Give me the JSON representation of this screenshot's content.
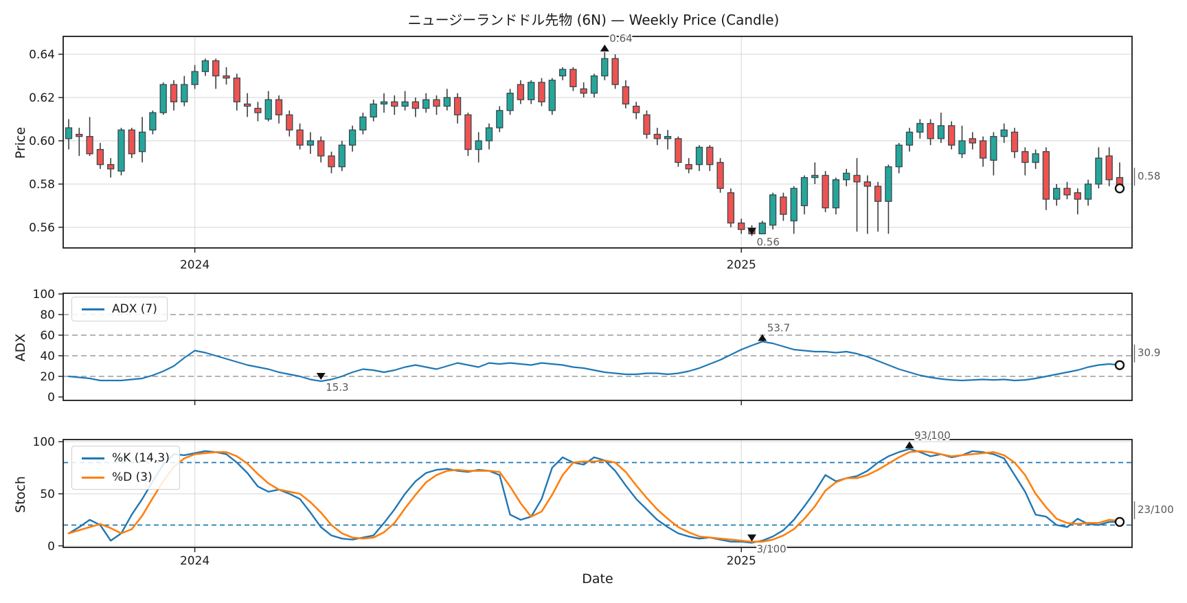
{
  "figure": {
    "title": "ニュージーランドドル先物 (6N) — Weekly Price (Candle)",
    "xlabel": "Date",
    "background": "#ffffff"
  },
  "colors": {
    "up": "#26a69a",
    "down": "#ef5350",
    "wick": "#3c3c3c",
    "edge": "#37474f",
    "adx_line": "#1f77b4",
    "k_line": "#1f77b4",
    "d_line": "#ff7f0e",
    "grid": "#dcdcdc",
    "dashed_grid": "#9a9a9a",
    "band": "#1f77b4",
    "frame": "#1a1a1a",
    "annotation_text": "#595959",
    "marker": "#111111",
    "tick_text": "#1a1a1a"
  },
  "x_axis": {
    "label": "Date",
    "n_weeks": 101,
    "year_ticks": [
      {
        "label": "2024",
        "week": 12
      },
      {
        "label": "2025",
        "week": 64
      }
    ]
  },
  "panels": {
    "price": {
      "ylabel": "Price",
      "yticks": [
        0.56,
        0.58,
        0.6,
        0.62,
        0.64
      ],
      "ytick_labels": [
        "0.56",
        "0.58",
        "0.60",
        "0.62",
        "0.64"
      ]
    },
    "adx": {
      "ylabel": "ADX",
      "yticks": [
        0,
        20,
        40,
        60,
        80,
        100
      ],
      "dashed_gridlines": [
        20,
        40,
        60,
        80
      ],
      "legend": [
        "ADX (7)"
      ]
    },
    "stoch": {
      "ylabel": "Stoch",
      "yticks": [
        0,
        50,
        100
      ],
      "bands": [
        20,
        80
      ],
      "legend": [
        "%K (14,3)",
        "%D (3)"
      ]
    }
  },
  "chart_data": [
    {
      "type": "candlestick",
      "title": "ニュージーランドドル先物 (6N) — Weekly Price (Candle)",
      "ylabel": "Price",
      "x_unit": "week",
      "xtick_labels": [
        "2024",
        "2025"
      ],
      "ylim": [
        0.5505,
        0.6485
      ],
      "scale": 0.001,
      "ohlc_format": [
        "open",
        "high",
        "low",
        "close"
      ],
      "ohlc": [
        [
          601,
          610,
          596,
          606
        ],
        [
          603,
          606,
          593,
          602
        ],
        [
          602,
          611,
          593,
          594
        ],
        [
          596,
          599,
          587,
          589
        ],
        [
          589,
          592,
          583,
          587
        ],
        [
          586,
          606,
          584,
          605
        ],
        [
          605,
          606,
          592,
          594
        ],
        [
          595,
          611,
          590,
          604
        ],
        [
          605,
          614,
          603,
          613
        ],
        [
          613,
          627,
          612,
          626
        ],
        [
          626,
          628,
          614,
          618
        ],
        [
          618,
          630,
          616,
          626
        ],
        [
          626,
          635,
          624,
          632
        ],
        [
          632,
          638,
          630,
          637
        ],
        [
          637,
          638,
          624,
          630
        ],
        [
          630,
          634,
          626,
          629
        ],
        [
          629,
          631,
          614,
          618
        ],
        [
          617,
          622,
          611,
          616
        ],
        [
          615,
          618,
          609,
          613
        ],
        [
          610,
          623,
          609,
          619
        ],
        [
          619,
          621,
          608,
          612
        ],
        [
          612,
          614,
          602,
          605
        ],
        [
          605,
          608,
          596,
          598
        ],
        [
          598,
          604,
          594,
          600
        ],
        [
          600,
          602,
          590,
          593
        ],
        [
          593,
          595,
          585,
          588
        ],
        [
          588,
          600,
          586,
          598
        ],
        [
          598,
          607,
          595,
          605
        ],
        [
          605,
          613,
          603,
          611
        ],
        [
          611,
          619,
          609,
          617
        ],
        [
          617,
          622,
          613,
          618
        ],
        [
          618,
          621,
          612,
          616
        ],
        [
          616,
          623,
          614,
          618
        ],
        [
          618,
          620,
          611,
          615
        ],
        [
          615,
          622,
          613,
          619
        ],
        [
          619,
          621,
          612,
          616
        ],
        [
          616,
          624,
          614,
          620
        ],
        [
          620,
          622,
          608,
          612
        ],
        [
          612,
          613,
          593,
          596
        ],
        [
          596,
          604,
          590,
          600
        ],
        [
          600,
          608,
          596,
          606
        ],
        [
          606,
          616,
          604,
          614
        ],
        [
          614,
          624,
          612,
          622
        ],
        [
          626,
          628,
          617,
          619
        ],
        [
          619,
          628,
          617,
          627
        ],
        [
          627,
          629,
          616,
          618
        ],
        [
          614,
          629,
          612,
          628
        ],
        [
          630,
          634,
          628,
          633
        ],
        [
          633,
          634,
          623,
          625
        ],
        [
          624,
          627,
          620,
          622
        ],
        [
          622,
          631,
          620,
          630
        ],
        [
          630,
          641,
          628,
          638
        ],
        [
          638,
          640,
          624,
          626
        ],
        [
          625,
          628,
          615,
          617
        ],
        [
          616,
          618,
          610,
          613
        ],
        [
          612,
          614,
          601,
          603
        ],
        [
          603,
          606,
          598,
          601
        ],
        [
          601,
          605,
          596,
          602
        ],
        [
          601,
          602,
          588,
          590
        ],
        [
          589,
          592,
          585,
          587
        ],
        [
          589,
          598,
          586,
          597
        ],
        [
          597,
          598,
          586,
          589
        ],
        [
          590,
          592,
          576,
          578
        ],
        [
          576,
          578,
          560,
          562
        ],
        [
          562,
          564,
          557,
          559
        ],
        [
          559,
          561,
          556,
          557
        ],
        [
          557,
          563,
          557,
          562
        ],
        [
          561,
          576,
          559,
          575
        ],
        [
          574,
          576,
          563,
          566
        ],
        [
          563,
          579,
          557,
          578
        ],
        [
          570,
          584,
          566,
          583
        ],
        [
          583,
          590,
          580,
          584
        ],
        [
          584,
          586,
          567,
          569
        ],
        [
          569,
          583,
          566,
          582
        ],
        [
          582,
          587,
          579,
          585
        ],
        [
          584,
          592,
          558,
          581
        ],
        [
          581,
          584,
          557,
          579
        ],
        [
          579,
          581,
          558,
          572
        ],
        [
          572,
          589,
          557,
          588
        ],
        [
          588,
          599,
          585,
          598
        ],
        [
          598,
          606,
          595,
          604
        ],
        [
          604,
          610,
          601,
          608
        ],
        [
          608,
          610,
          598,
          601
        ],
        [
          601,
          613,
          599,
          607
        ],
        [
          607,
          609,
          596,
          598
        ],
        [
          594,
          607,
          592,
          600
        ],
        [
          601,
          604,
          596,
          599
        ],
        [
          600,
          602,
          588,
          592
        ],
        [
          591,
          604,
          584,
          602
        ],
        [
          602,
          608,
          599,
          605
        ],
        [
          604,
          606,
          592,
          595
        ],
        [
          595,
          597,
          584,
          590
        ],
        [
          590,
          596,
          587,
          594
        ],
        [
          595,
          597,
          568,
          573
        ],
        [
          573,
          580,
          570,
          578
        ],
        [
          578,
          581,
          573,
          575
        ],
        [
          576,
          578,
          566,
          573
        ],
        [
          573,
          582,
          570,
          580
        ],
        [
          580,
          597,
          578,
          592
        ],
        [
          593,
          597,
          579,
          582
        ],
        [
          583,
          590,
          576,
          578
        ]
      ],
      "annotations": [
        {
          "type": "max",
          "week": 51,
          "value": 0.641,
          "label": "0.64"
        },
        {
          "type": "min",
          "week": 65,
          "value": 0.556,
          "label": "0.56"
        },
        {
          "type": "last",
          "week": 100,
          "value": 0.578,
          "label": "0.58"
        }
      ]
    },
    {
      "type": "line",
      "name": "ADX (7)",
      "ylabel": "ADX",
      "ylim": [
        -3.3,
        100.7
      ],
      "grid": "dashed at 20/40/60/80",
      "legend_position": "upper left",
      "values": [
        20,
        19,
        18,
        16,
        16,
        16,
        17,
        18,
        21,
        25,
        30,
        38,
        45,
        43,
        40,
        37,
        34,
        31,
        29,
        27,
        24,
        22,
        20,
        17,
        15.3,
        17,
        20,
        24,
        27,
        26,
        24,
        26,
        29,
        31,
        29,
        27,
        30,
        33,
        31,
        29,
        33,
        32,
        33,
        32,
        31,
        33,
        32,
        31,
        29,
        28,
        26,
        24,
        23,
        22,
        22,
        23,
        23,
        22,
        23,
        25,
        28,
        32,
        36,
        41,
        46,
        50,
        53.7,
        52,
        49,
        46,
        45,
        44,
        44,
        43,
        44,
        42,
        39,
        35,
        31,
        27,
        24,
        21,
        19,
        17.5,
        16.5,
        16,
        16.5,
        17,
        16.5,
        17,
        16,
        16.5,
        18,
        20,
        22,
        24,
        26,
        29,
        31,
        32,
        30.9
      ],
      "annotations": [
        {
          "type": "max",
          "week": 66,
          "value": 53.7,
          "label": "53.7"
        },
        {
          "type": "min",
          "week": 24,
          "value": 15.3,
          "label": "15.3"
        },
        {
          "type": "last",
          "week": 100,
          "value": 30.9,
          "label": "30.9"
        }
      ]
    },
    {
      "type": "line",
      "ylabel": "Stoch",
      "ylim": [
        -1.5,
        103.5
      ],
      "overbought_oversold_bands": [
        80,
        20
      ],
      "legend_position": "upper left",
      "series": [
        {
          "name": "%K (14,3)",
          "values": [
            12,
            18,
            25,
            20,
            5,
            12,
            30,
            45,
            62,
            78,
            88,
            87,
            89,
            91,
            90,
            88,
            80,
            70,
            57,
            52,
            54,
            50,
            45,
            32,
            18,
            10,
            7,
            6,
            8,
            10,
            22,
            35,
            50,
            62,
            70,
            73,
            74,
            72,
            71,
            73,
            72,
            68,
            30,
            25,
            28,
            45,
            75,
            85,
            80,
            78,
            85,
            82,
            72,
            58,
            45,
            35,
            25,
            18,
            12,
            9,
            7,
            8,
            6,
            4,
            4,
            3,
            5,
            9,
            15,
            25,
            38,
            52,
            68,
            62,
            65,
            67,
            72,
            80,
            86,
            90,
            93,
            90,
            86,
            88,
            85,
            87,
            91,
            90,
            88,
            84,
            68,
            52,
            30,
            28,
            20,
            18,
            26,
            21,
            20,
            23,
            23
          ]
        },
        {
          "name": "%D (3)",
          "values": [
            12,
            15,
            18,
            21,
            17,
            12,
            16,
            29,
            46,
            62,
            76,
            84,
            88,
            89,
            90,
            90,
            86,
            79,
            69,
            60,
            54,
            52,
            50,
            42,
            32,
            20,
            12,
            8,
            7,
            8,
            13,
            22,
            36,
            49,
            61,
            68,
            72,
            73,
            72,
            72,
            72,
            71,
            57,
            41,
            28,
            33,
            49,
            68,
            80,
            81,
            81,
            82,
            80,
            71,
            58,
            46,
            35,
            26,
            18,
            13,
            9,
            8,
            7,
            6,
            5,
            4,
            4,
            6,
            10,
            16,
            26,
            38,
            53,
            61,
            65,
            65,
            68,
            73,
            79,
            85,
            90,
            91,
            90,
            88,
            86,
            87,
            88,
            89,
            90,
            87,
            80,
            68,
            50,
            37,
            26,
            22,
            21,
            22,
            22,
            25,
            24
          ]
        }
      ],
      "annotations": [
        {
          "type": "max",
          "week": 80,
          "value": 93,
          "label": "93/100"
        },
        {
          "type": "min",
          "week": 65,
          "value": 3,
          "label": "3/100"
        },
        {
          "type": "last",
          "week": 100,
          "value": 23,
          "label": "23/100"
        }
      ]
    }
  ]
}
